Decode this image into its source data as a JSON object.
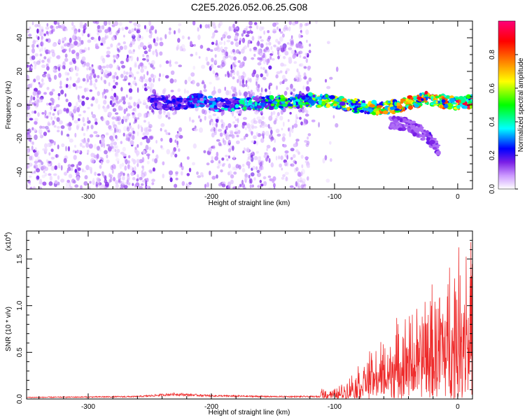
{
  "title": "C2E5.2026.052.06.25.G08",
  "chart_data": [
    {
      "type": "heatmap",
      "name": "spectrogram",
      "xlabel": "Height of straight line (km)",
      "ylabel": "Frequency (Hz)",
      "xlim": [
        -350,
        12
      ],
      "ylim": [
        -50,
        50
      ],
      "xticks": [
        -300,
        -200,
        -100,
        0
      ],
      "yticks": [
        -40,
        -20,
        0,
        20,
        40
      ],
      "colorbar": {
        "label": "Normalized spectral amplitude",
        "range": [
          0,
          1
        ],
        "ticks": [
          0.0,
          0.2,
          0.4,
          0.6,
          0.8
        ],
        "tick_labels": [
          "0.0",
          "0.2",
          "0.4",
          "0.6",
          "0.8"
        ],
        "colors": [
          "#ffffff",
          "#cc99ff",
          "#7a1fe6",
          "#0000ff",
          "#00ffff",
          "#00ff00",
          "#ffff00",
          "#ff8000",
          "#ff0000",
          "#ff007a"
        ]
      },
      "noise_segments": [
        {
          "x": [
            -350,
            -245
          ],
          "density": 0.9
        },
        {
          "x": [
            -245,
            -200
          ],
          "density": 0.35
        },
        {
          "x": [
            -200,
            -120
          ],
          "density": 0.85
        },
        {
          "x": [
            -120,
            -95
          ],
          "density": 0.06
        }
      ],
      "tracks": [
        {
          "name": "carrier",
          "points": [
            [
              -250,
              2
            ],
            [
              -230,
              1
            ],
            [
              -210,
              3
            ],
            [
              -195,
              0
            ],
            [
              -130,
              2
            ],
            [
              -120,
              3
            ],
            [
              -100,
              2
            ],
            [
              -80,
              -1
            ],
            [
              -60,
              -2
            ],
            [
              -40,
              1
            ],
            [
              -25,
              4
            ],
            [
              -10,
              2
            ],
            [
              0,
              1
            ],
            [
              12,
              2
            ]
          ],
          "amp_start": 0.3,
          "amp_end": 0.95
        },
        {
          "name": "secondary",
          "points": [
            [
              -55,
              -10
            ],
            [
              -40,
              -12
            ],
            [
              -30,
              -16
            ],
            [
              -20,
              -22
            ],
            [
              -15,
              -28
            ]
          ],
          "amp_start": 0.2,
          "amp_end": 0.25
        }
      ]
    },
    {
      "type": "line",
      "name": "snr",
      "xlabel": "Height of straight line (km)",
      "ylabel": "SNR (10 * v/v)",
      "scale_note": "(x10",
      "scale_exp": "4",
      "scale_close": ")",
      "xlim": [
        -350,
        12
      ],
      "ylim": [
        0,
        1.8
      ],
      "xticks": [
        -300,
        -200,
        -100,
        0
      ],
      "yticks": [
        0.0,
        0.5,
        1.0,
        1.5
      ],
      "ytick_labels": [
        "0.0",
        "0.5",
        "1.0",
        "1.5"
      ],
      "color": "#ee2b2b",
      "envelope": [
        [
          -350,
          0.02
        ],
        [
          -300,
          0.025
        ],
        [
          -260,
          0.03
        ],
        [
          -230,
          0.06
        ],
        [
          -200,
          0.04
        ],
        [
          -150,
          0.03
        ],
        [
          -112,
          0.03
        ],
        [
          -110,
          0.12
        ],
        [
          -100,
          0.1
        ],
        [
          -90,
          0.18
        ],
        [
          -80,
          0.35
        ],
        [
          -70,
          0.45
        ],
        [
          -60,
          0.55
        ],
        [
          -50,
          0.7
        ],
        [
          -40,
          0.8
        ],
        [
          -30,
          0.95
        ],
        [
          -20,
          1.05
        ],
        [
          -10,
          1.2
        ],
        [
          0,
          1.4
        ],
        [
          5,
          1.6
        ],
        [
          10,
          1.75
        ],
        [
          12,
          1.8
        ]
      ]
    }
  ]
}
